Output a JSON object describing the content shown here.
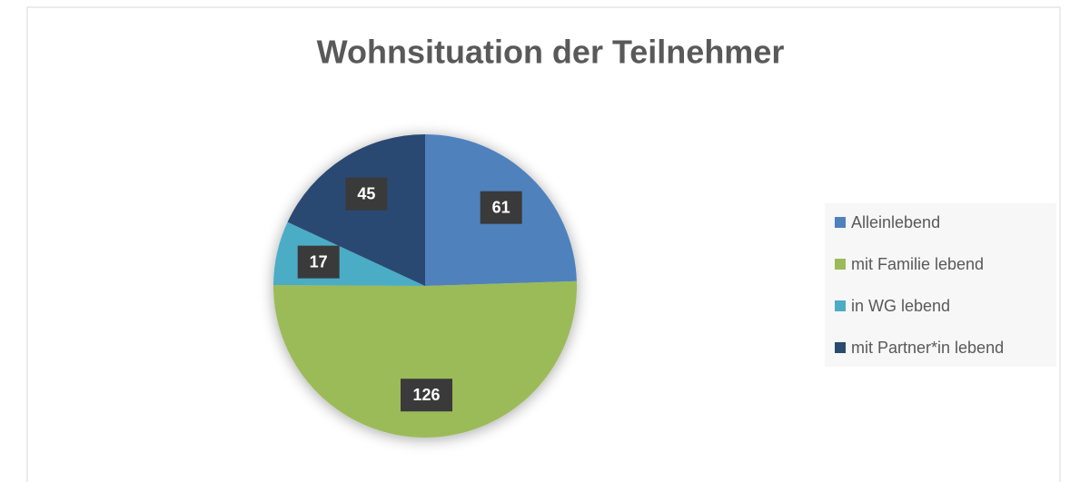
{
  "chart_data": {
    "type": "pie",
    "title": "Wohnsituation der Teilnehmer",
    "categories": [
      "Alleinlebend",
      "mit Familie lebend",
      "in WG lebend",
      "mit Partner*in lebend"
    ],
    "values": [
      61,
      126,
      17,
      45
    ],
    "colors": [
      "#4f81bd",
      "#9bbb59",
      "#4bacc6",
      "#2b4a72"
    ],
    "legend": "right"
  }
}
